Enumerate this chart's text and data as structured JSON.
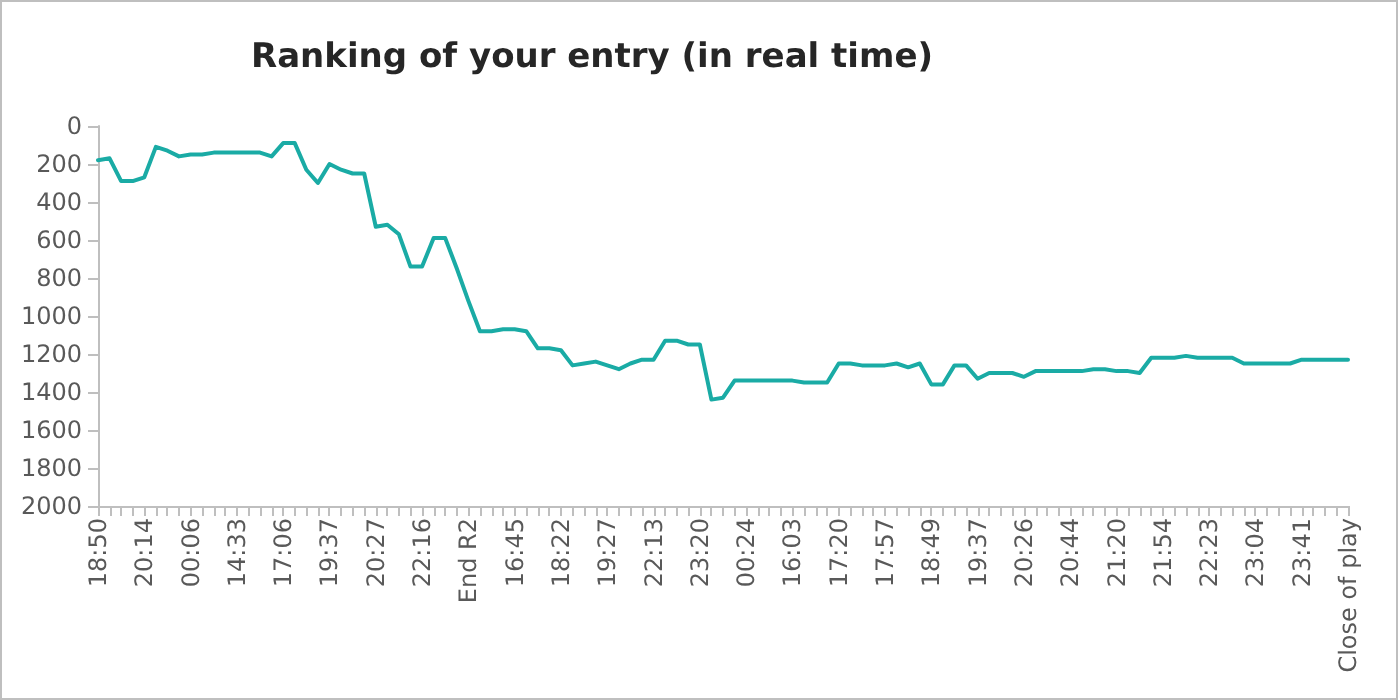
{
  "chart_data": {
    "type": "line",
    "title": "Ranking of your entry (in real time)",
    "categories": [
      "18:50",
      null,
      null,
      null,
      "20:14",
      null,
      null,
      null,
      "00:06",
      null,
      null,
      null,
      "14:33",
      null,
      null,
      null,
      "17:06",
      null,
      null,
      null,
      "19:37",
      null,
      null,
      null,
      "20:27",
      null,
      null,
      null,
      "22:16",
      null,
      null,
      null,
      "End R2",
      null,
      null,
      null,
      "16:45",
      null,
      null,
      null,
      "18:22",
      null,
      null,
      null,
      "19:27",
      null,
      null,
      null,
      "22:13",
      null,
      null,
      null,
      "23:20",
      null,
      null,
      null,
      "00:24",
      null,
      null,
      null,
      "16:03",
      null,
      null,
      null,
      "17:20",
      null,
      null,
      null,
      "17:57",
      null,
      null,
      null,
      "18:49",
      null,
      null,
      null,
      "19:37",
      null,
      null,
      null,
      "20:26",
      null,
      null,
      null,
      "20:44",
      null,
      null,
      null,
      "21:20",
      null,
      null,
      null,
      "21:54",
      null,
      null,
      null,
      "22:23",
      null,
      null,
      null,
      "23:04",
      null,
      null,
      null,
      "23:41",
      null,
      null,
      null,
      "Close of play"
    ],
    "series": [
      {
        "color": "#1aaba5",
        "values": [
          180,
          170,
          290,
          290,
          270,
          110,
          130,
          160,
          150,
          150,
          140,
          140,
          140,
          140,
          140,
          160,
          90,
          90,
          230,
          300,
          200,
          230,
          250,
          250,
          530,
          520,
          570,
          740,
          740,
          590,
          590,
          750,
          920,
          1080,
          1080,
          1070,
          1070,
          1080,
          1170,
          1170,
          1180,
          1260,
          1250,
          1240,
          1260,
          1280,
          1250,
          1230,
          1230,
          1130,
          1130,
          1150,
          1150,
          1440,
          1430,
          1340,
          1340,
          1340,
          1340,
          1340,
          1340,
          1350,
          1350,
          1350,
          1250,
          1250,
          1260,
          1260,
          1260,
          1250,
          1270,
          1250,
          1360,
          1360,
          1260,
          1260,
          1330,
          1300,
          1300,
          1300,
          1320,
          1290,
          1290,
          1290,
          1290,
          1290,
          1280,
          1280,
          1290,
          1290,
          1300,
          1220,
          1220,
          1220,
          1210,
          1220,
          1220,
          1220,
          1220,
          1250,
          1250,
          1250,
          1250,
          1250,
          1230,
          1230,
          1230,
          1230,
          1230
        ]
      }
    ],
    "ylim": [
      2000,
      0
    ],
    "yticks": [
      0,
      200,
      400,
      600,
      800,
      1000,
      1200,
      1400,
      1600,
      1800,
      2000
    ],
    "marker": "none",
    "line_style": "solid"
  }
}
